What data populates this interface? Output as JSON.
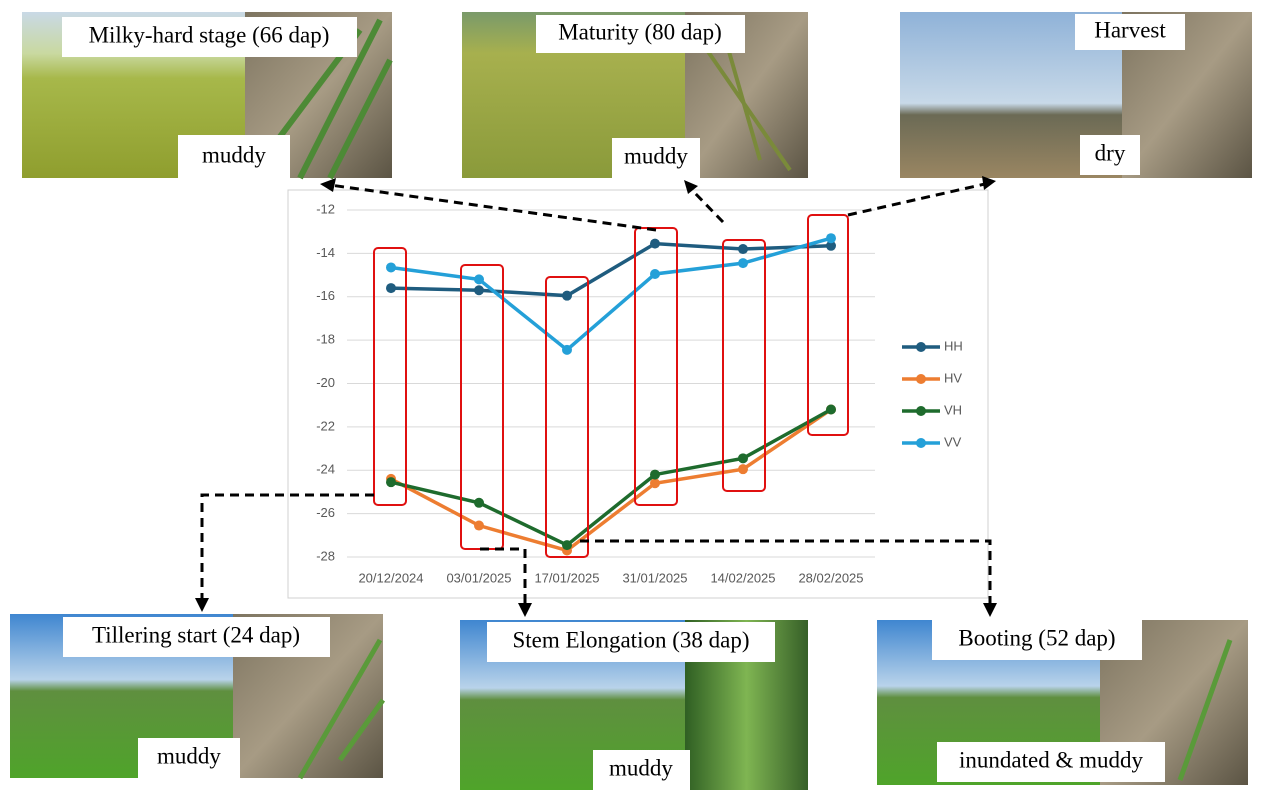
{
  "chart_data": {
    "type": "line",
    "categories": [
      "20/12/2024",
      "03/01/2025",
      "17/01/2025",
      "31/01/2025",
      "14/02/2025",
      "28/02/2025"
    ],
    "series": [
      {
        "name": "HH",
        "color": "#1f5c7f",
        "values": [
          -15.6,
          -15.7,
          -15.95,
          -13.55,
          -13.8,
          -13.65
        ]
      },
      {
        "name": "HV",
        "color": "#ed7d31",
        "values": [
          -24.4,
          -26.55,
          -27.7,
          -24.6,
          -23.95,
          -21.2
        ]
      },
      {
        "name": "VH",
        "color": "#1e6b2d",
        "values": [
          -24.55,
          -25.5,
          -27.45,
          -24.2,
          -23.45,
          -21.2
        ]
      },
      {
        "name": "VV",
        "color": "#24a0d8",
        "values": [
          -14.65,
          -15.2,
          -18.45,
          -14.95,
          -14.45,
          -13.3
        ]
      }
    ],
    "ylim": [
      -28,
      -12
    ],
    "yticks": [
      -12,
      -14,
      -16,
      -18,
      -20,
      -22,
      -24,
      -26,
      -28
    ],
    "grid": true,
    "legend": "right"
  },
  "photos": [
    {
      "stage": "Milky-hard stage (66 dap)",
      "condition": "muddy"
    },
    {
      "stage": "Maturity (80 dap)",
      "condition": "muddy"
    },
    {
      "stage": "Harvest",
      "condition": "dry"
    },
    {
      "stage": "Tillering start (24 dap)",
      "condition": "muddy"
    },
    {
      "stage": "Stem Elongation (38 dap)",
      "condition": "muddy"
    },
    {
      "stage": "Booting (52 dap)",
      "condition": "inundated & muddy"
    }
  ]
}
